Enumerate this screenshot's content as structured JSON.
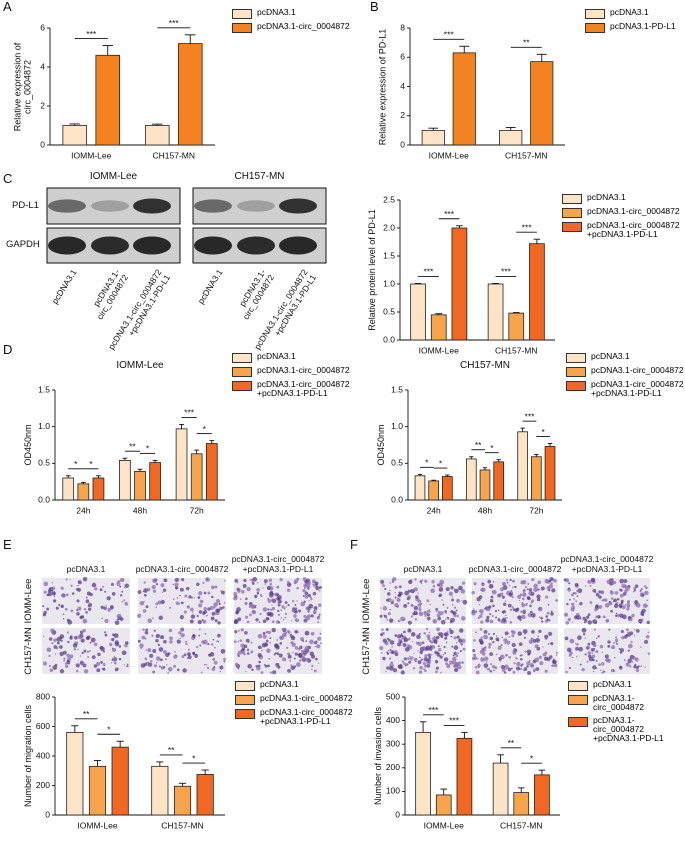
{
  "chart_data": [
    {
      "type": "bar",
      "panel": "A",
      "ylabel": "Relative expression of circ_0004872",
      "categories": [
        "IOMM-Lee",
        "CH157-MN"
      ],
      "series": [
        {
          "name": "pcDNA3.1",
          "color": "#fde4c6",
          "values": [
            1.0,
            1.0
          ],
          "errors": [
            0.08,
            0.07
          ]
        },
        {
          "name": "pcDNA3.1-circ_0004872",
          "color": "#f58220",
          "values": [
            4.6,
            5.2
          ],
          "errors": [
            0.5,
            0.45
          ]
        }
      ],
      "ylim": [
        0,
        6
      ],
      "yticks": [
        0,
        2,
        4,
        6
      ],
      "significance": [
        [
          "***"
        ],
        [
          "***"
        ]
      ]
    },
    {
      "type": "bar",
      "panel": "B",
      "ylabel": "Relative expression of PD-L1",
      "categories": [
        "IOMM-Lee",
        "CH157-MN"
      ],
      "series": [
        {
          "name": "pcDNA3.1",
          "color": "#fde4c6",
          "values": [
            1.0,
            1.0
          ],
          "errors": [
            0.15,
            0.2
          ]
        },
        {
          "name": "pcDNA3.1-PD-L1",
          "color": "#f58220",
          "values": [
            6.3,
            5.7
          ],
          "errors": [
            0.45,
            0.5
          ]
        }
      ],
      "ylim": [
        0,
        8
      ],
      "yticks": [
        0,
        2,
        4,
        6,
        8
      ],
      "significance": [
        [
          "***"
        ],
        [
          "**"
        ]
      ]
    },
    {
      "type": "bar",
      "ylabel": "Relative protein level of PD-L1",
      "categories": [
        "IOMM-Lee",
        "CH157-MN"
      ],
      "series": [
        {
          "name": "pcDNA3.1",
          "color": "#fde4c6",
          "values": [
            1.0,
            1.0
          ],
          "errors": [
            0.01,
            0.01
          ]
        },
        {
          "name": "pcDNA3.1-circ_0004872",
          "color": "#f8a44c",
          "values": [
            0.45,
            0.48
          ],
          "errors": [
            0.02,
            0.01
          ]
        },
        {
          "name": "pcDNA3.1-circ_0004872 +pcDNA3.1-PD-L1",
          "color": "#f26722",
          "values": [
            2.0,
            1.72
          ],
          "errors": [
            0.04,
            0.08
          ]
        }
      ],
      "ylim": [
        0,
        2.5
      ],
      "yticks": [
        {
          "value": 0,
          "label": "0.0"
        },
        0.5,
        {
          "value": 1,
          "label": "1.0"
        },
        1.5,
        {
          "value": 2,
          "label": "2.0"
        },
        2.5
      ],
      "significance": [
        [
          "***",
          "***"
        ],
        [
          "***",
          "***"
        ]
      ]
    },
    {
      "type": "bar",
      "panel": "D",
      "title": "IOMM-Lee",
      "ylabel": "OD450nm",
      "categories": [
        "24h",
        "48h",
        "72h"
      ],
      "series": [
        {
          "name": "pcDNA3.1",
          "color": "#fde4c6",
          "values": [
            0.3,
            0.54,
            0.97
          ],
          "errors": [
            0.03,
            0.03,
            0.06
          ]
        },
        {
          "name": "pcDNA3.1-circ_0004872",
          "color": "#f8a44c",
          "values": [
            0.22,
            0.39,
            0.63
          ],
          "errors": [
            0.02,
            0.03,
            0.05
          ]
        },
        {
          "name": "pcDNA3.1-circ_0004872 +pcDNA3.1-PD-L1",
          "color": "#f26722",
          "values": [
            0.3,
            0.51,
            0.77
          ],
          "errors": [
            0.03,
            0.03,
            0.04
          ]
        }
      ],
      "ylim": [
        0,
        1.5
      ],
      "yticks": [
        {
          "value": 0,
          "label": "0.0"
        },
        0.5,
        {
          "value": 1,
          "label": "1.0"
        },
        1.5
      ],
      "significance": [
        [
          "*",
          "*"
        ],
        [
          "**",
          "*"
        ],
        [
          "***",
          "*"
        ]
      ]
    },
    {
      "type": "bar",
      "title": "CH157-MN",
      "ylabel": "OD450nm",
      "categories": [
        "24h",
        "48h",
        "72h"
      ],
      "series": [
        {
          "name": "pcDNA3.1",
          "color": "#fde4c6",
          "values": [
            0.33,
            0.56,
            0.93
          ],
          "errors": [
            0.02,
            0.03,
            0.05
          ]
        },
        {
          "name": "pcDNA3.1-circ_0004872",
          "color": "#f8a44c",
          "values": [
            0.26,
            0.41,
            0.59
          ],
          "errors": [
            0.01,
            0.03,
            0.03
          ]
        },
        {
          "name": "pcDNA3.1-circ_0004872 +pcDNA3.1-PD-L1",
          "color": "#f26722",
          "values": [
            0.32,
            0.52,
            0.73
          ],
          "errors": [
            0.02,
            0.03,
            0.04
          ]
        }
      ],
      "ylim": [
        0,
        1.5
      ],
      "yticks": [
        {
          "value": 0,
          "label": "0.0"
        },
        0.5,
        {
          "value": 1,
          "label": "1.0"
        },
        1.5
      ],
      "significance": [
        [
          "*",
          "*"
        ],
        [
          "**",
          "*"
        ],
        [
          "***",
          "*"
        ]
      ]
    },
    {
      "type": "bar",
      "ylabel": "Number of migration cells",
      "categories": [
        "IOMM-Lee",
        "CH157-MN"
      ],
      "series": [
        {
          "name": "pcDNA3.1",
          "color": "#fde4c6",
          "values": [
            560,
            330
          ],
          "errors": [
            45,
            30
          ]
        },
        {
          "name": "pcDNA3.1-circ_0004872",
          "color": "#f8a44c",
          "values": [
            330,
            195
          ],
          "errors": [
            40,
            20
          ]
        },
        {
          "name": "pcDNA3.1-circ_0004872 +pcDNA3.1-PD-L1",
          "color": "#f26722",
          "values": [
            460,
            275
          ],
          "errors": [
            40,
            30
          ]
        }
      ],
      "ylim": [
        0,
        800
      ],
      "yticks": [
        0,
        200,
        400,
        600,
        800
      ],
      "significance": [
        [
          "**",
          "*"
        ],
        [
          "**",
          "*"
        ]
      ]
    },
    {
      "type": "bar",
      "ylabel": "Number of invasion cells",
      "categories": [
        "IOMM-Lee",
        "CH157-MN"
      ],
      "series": [
        {
          "name": "pcDNA3.1",
          "color": "#fde4c6",
          "values": [
            350,
            220
          ],
          "errors": [
            45,
            35
          ]
        },
        {
          "name": "pcDNA3.1-circ_0004872",
          "color": "#f8a44c",
          "values": [
            85,
            95
          ],
          "errors": [
            25,
            20
          ]
        },
        {
          "name": "pcDNA3.1-circ_0004872 +pcDNA3.1-PD-L1",
          "color": "#f26722",
          "values": [
            325,
            170
          ],
          "errors": [
            25,
            20
          ]
        }
      ],
      "ylim": [
        0,
        500
      ],
      "yticks": [
        0,
        100,
        200,
        300,
        400,
        500
      ],
      "significance": [
        [
          "***",
          "***"
        ],
        [
          "**",
          "*"
        ]
      ]
    }
  ],
  "blot": {
    "panel": "C",
    "cell_lines": [
      "IOMM-Lee",
      "CH157-MN"
    ],
    "proteins": [
      "PD-L1",
      "GAPDH"
    ],
    "lanes": [
      "pcDNA3.1",
      "pcDNA3.1-circ_0004872",
      "pcDNA3.1-circ_0004872 +pcDNA3.1-PD-L1"
    ]
  },
  "micrographs": [
    {
      "panel": "E",
      "columns": [
        "pcDNA3.1",
        "pcDNA3.1-circ_0004872",
        "pcDNA3.1-circ_0004872 +pcDNA3.1-PD-L1"
      ],
      "rows": [
        "IOMM-Lee",
        "CH157-MN"
      ]
    },
    {
      "panel": "F",
      "columns": [
        "pcDNA3.1",
        "pcDNA3.1-circ_0004872",
        "pcDNA3.1-circ_0004872 +pcDNA3.1-PD-L1"
      ],
      "rows": [
        "IOMM-Lee",
        "CH157-MN"
      ]
    }
  ]
}
